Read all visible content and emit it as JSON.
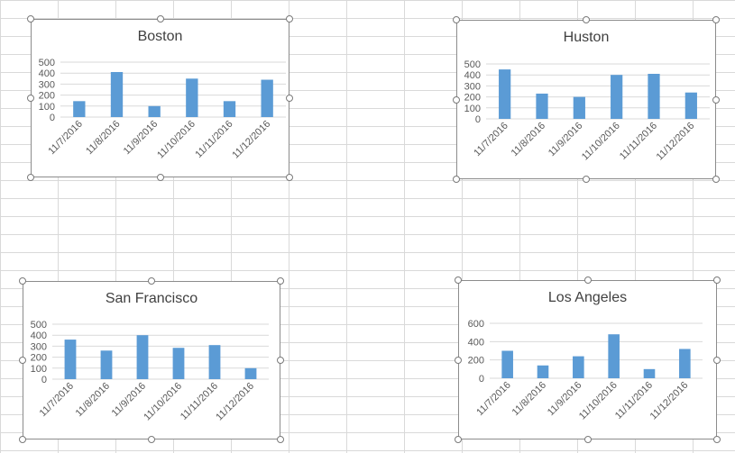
{
  "chart_data": [
    {
      "type": "bar",
      "title": "Boston",
      "categories": [
        "11/7/2016",
        "11/8/2016",
        "11/9/2016",
        "11/10/2016",
        "11/11/2016",
        "11/12/2016"
      ],
      "values": [
        145,
        410,
        100,
        350,
        145,
        340
      ],
      "ylim": [
        0,
        500
      ],
      "yticks": [
        0,
        100,
        200,
        300,
        400,
        500
      ],
      "grid": true,
      "bar_color": "#5b9bd5"
    },
    {
      "type": "bar",
      "title": "Huston",
      "categories": [
        "11/7/2016",
        "11/8/2016",
        "11/9/2016",
        "11/10/2016",
        "11/11/2016",
        "11/12/2016"
      ],
      "values": [
        450,
        230,
        200,
        400,
        410,
        240
      ],
      "ylim": [
        0,
        500
      ],
      "yticks": [
        0,
        100,
        200,
        300,
        400,
        500
      ],
      "grid": true,
      "bar_color": "#5b9bd5"
    },
    {
      "type": "bar",
      "title": "San Francisco",
      "categories": [
        "11/7/2016",
        "11/8/2016",
        "11/9/2016",
        "11/10/2016",
        "11/11/2016",
        "11/12/2016"
      ],
      "values": [
        360,
        260,
        400,
        285,
        310,
        100
      ],
      "ylim": [
        0,
        500
      ],
      "yticks": [
        0,
        100,
        200,
        300,
        400,
        500
      ],
      "grid": true,
      "bar_color": "#5b9bd5"
    },
    {
      "type": "bar",
      "title": "Los Angeles",
      "categories": [
        "11/7/2016",
        "11/8/2016",
        "11/9/2016",
        "11/10/2016",
        "11/11/2016",
        "11/12/2016"
      ],
      "values": [
        300,
        140,
        240,
        480,
        100,
        320
      ],
      "ylim": [
        0,
        600
      ],
      "yticks": [
        0,
        200,
        400,
        600
      ],
      "grid": true,
      "bar_color": "#5b9bd5"
    }
  ]
}
